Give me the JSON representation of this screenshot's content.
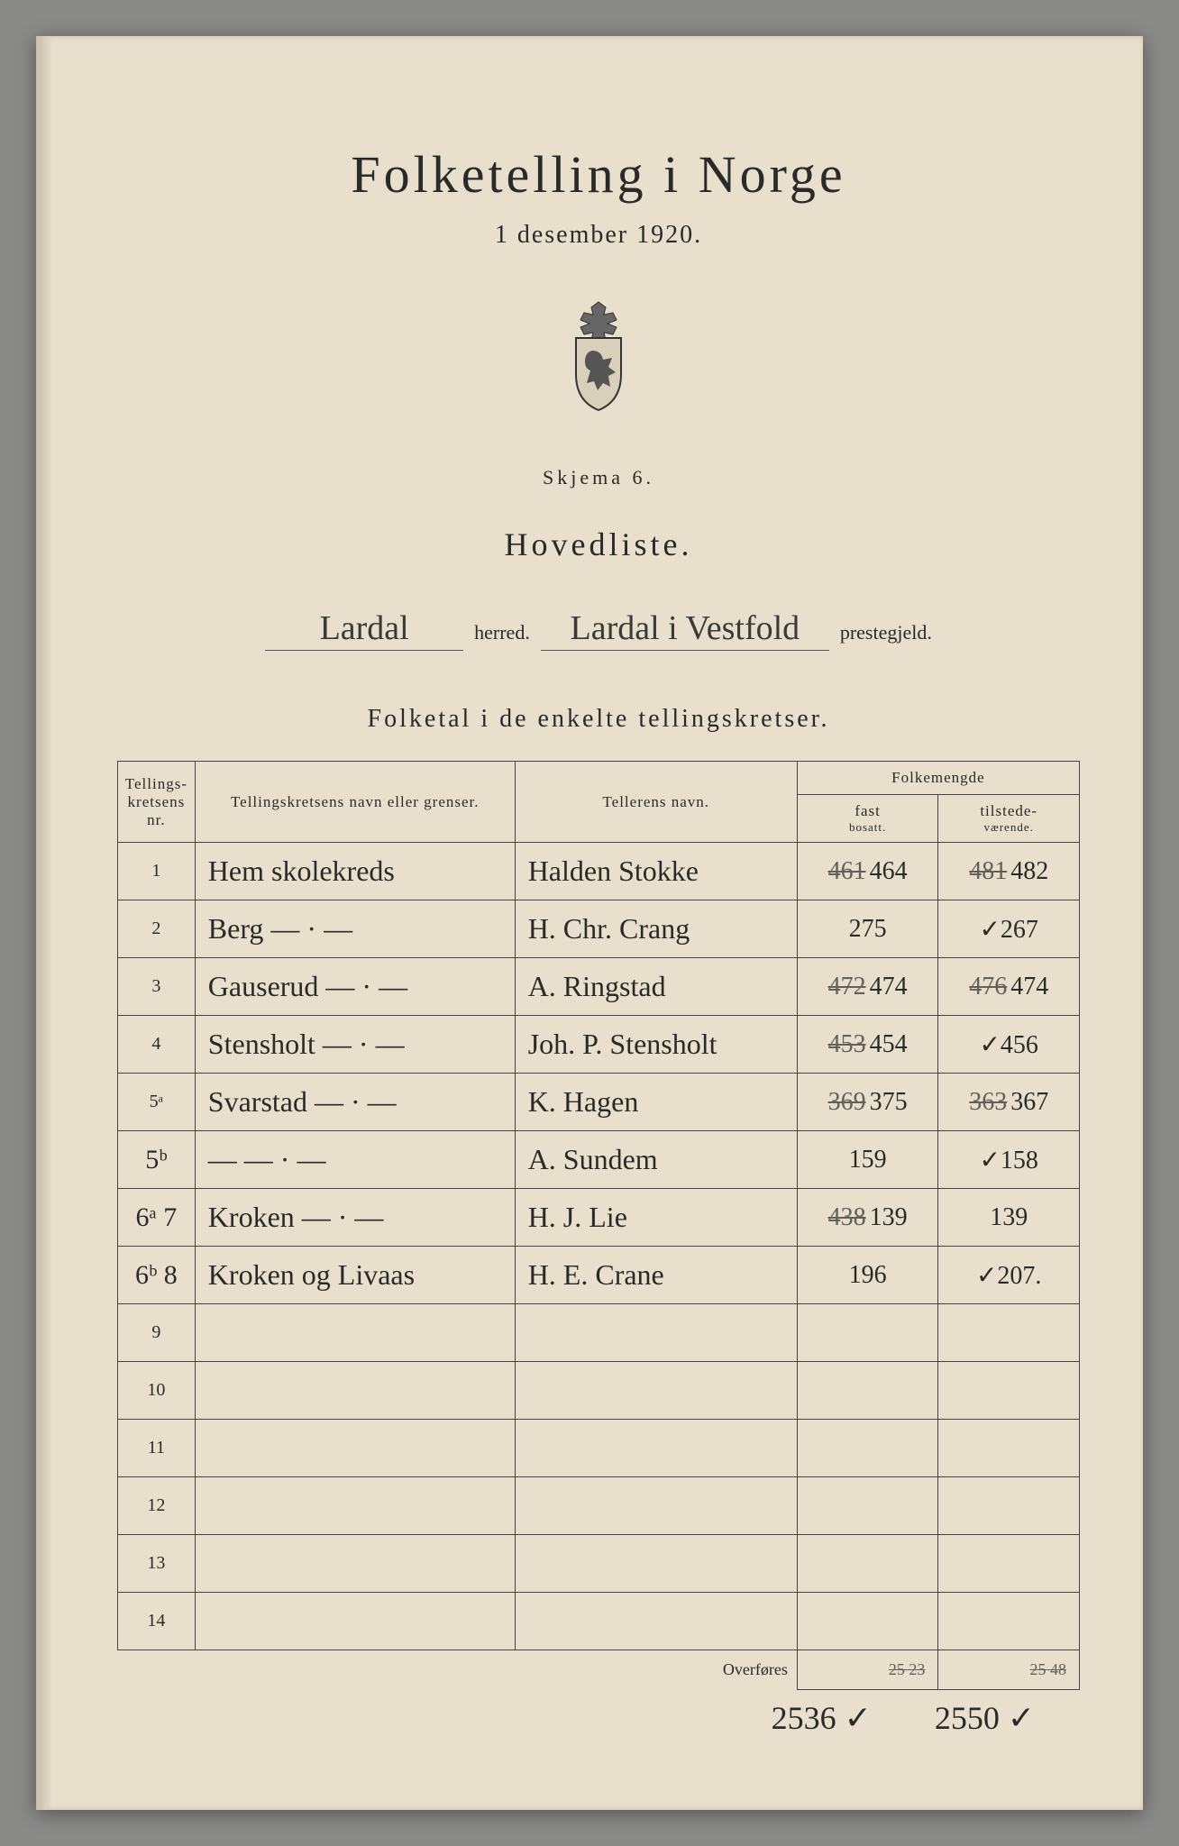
{
  "header": {
    "title": "Folketelling i Norge",
    "subtitle": "1 desember 1920.",
    "skjema": "Skjema 6.",
    "hovedliste": "Hovedliste.",
    "herred_value": "Lardal",
    "herred_label": "herred.",
    "prestegjeld_value": "Lardal i Vestfold",
    "prestegjeld_label": "prestegjeld.",
    "section_title": "Folketal i de enkelte tellingskretser."
  },
  "table": {
    "headers": {
      "nr": "Tellings-kretsens nr.",
      "name": "Tellingskretsens navn eller grenser.",
      "teller": "Tellerens navn.",
      "folkemengde": "Folkemengde",
      "fast": "fast",
      "fast_sub": "bosatt.",
      "tilstede": "tilstede-",
      "tilstede_sub": "værende."
    },
    "rows": [
      {
        "nr": "1",
        "nr_hand": false,
        "name": "Hem skolekreds",
        "teller": "Halden Stokke",
        "fast_strike": "461",
        "fast": "464",
        "til_strike": "481",
        "til": "482"
      },
      {
        "nr": "2",
        "nr_hand": false,
        "name": "Berg  — · —",
        "teller": "H. Chr. Crang",
        "fast_strike": "",
        "fast": "275",
        "til_strike": "",
        "til": "✓267"
      },
      {
        "nr": "3",
        "nr_hand": false,
        "name": "Gauserud — · —",
        "teller": "A. Ringstad",
        "fast_strike": "472",
        "fast": "474",
        "til_strike": "476",
        "til": "474"
      },
      {
        "nr": "4",
        "nr_hand": false,
        "name": "Stensholt — · —",
        "teller": "Joh. P. Stensholt",
        "fast_strike": "453",
        "fast": "454",
        "til_strike": "",
        "til": "✓456"
      },
      {
        "nr": "5ᵃ",
        "nr_hand": false,
        "name": "Svarstad — · —",
        "teller": "K. Hagen",
        "fast_strike": "369",
        "fast": "375",
        "til_strike": "363",
        "til": "367"
      },
      {
        "nr": "5ᵇ",
        "nr_hand": true,
        "name": "—    — · —",
        "teller": "A. Sundem",
        "fast_strike": "",
        "fast": "159",
        "til_strike": "",
        "til": "✓158"
      },
      {
        "nr": "6ᵃ 7",
        "nr_hand": true,
        "name": "Kroken  — · —",
        "teller": "H. J. Lie",
        "fast_strike": "438",
        "fast": "139",
        "til_strike": "",
        "til": "139"
      },
      {
        "nr": "6ᵇ 8",
        "nr_hand": true,
        "name": "Kroken og Livaas",
        "teller": "H. E. Crane",
        "fast_strike": "",
        "fast": "196",
        "til_strike": "",
        "til": "✓207."
      },
      {
        "nr": "9",
        "nr_hand": false,
        "name": "",
        "teller": "",
        "fast_strike": "",
        "fast": "",
        "til_strike": "",
        "til": ""
      },
      {
        "nr": "10",
        "nr_hand": false,
        "name": "",
        "teller": "",
        "fast_strike": "",
        "fast": "",
        "til_strike": "",
        "til": ""
      },
      {
        "nr": "11",
        "nr_hand": false,
        "name": "",
        "teller": "",
        "fast_strike": "",
        "fast": "",
        "til_strike": "",
        "til": ""
      },
      {
        "nr": "12",
        "nr_hand": false,
        "name": "",
        "teller": "",
        "fast_strike": "",
        "fast": "",
        "til_strike": "",
        "til": ""
      },
      {
        "nr": "13",
        "nr_hand": false,
        "name": "",
        "teller": "",
        "fast_strike": "",
        "fast": "",
        "til_strike": "",
        "til": ""
      },
      {
        "nr": "14",
        "nr_hand": false,
        "name": "",
        "teller": "",
        "fast_strike": "",
        "fast": "",
        "til_strike": "",
        "til": ""
      }
    ],
    "overfores_label": "Overføres",
    "overfores_fast_strike": "25 23",
    "overfores_til_strike": "25 48",
    "total_fast": "2536 ✓",
    "total_til": "2550 ✓"
  },
  "style": {
    "paper_bg": "#e8e0cc",
    "ink": "#2a2a28",
    "hand_ink": "#3a3a36",
    "border": "#444",
    "title_fontsize": 58,
    "body_fontsize": 18,
    "hand_fontsize": 32
  }
}
